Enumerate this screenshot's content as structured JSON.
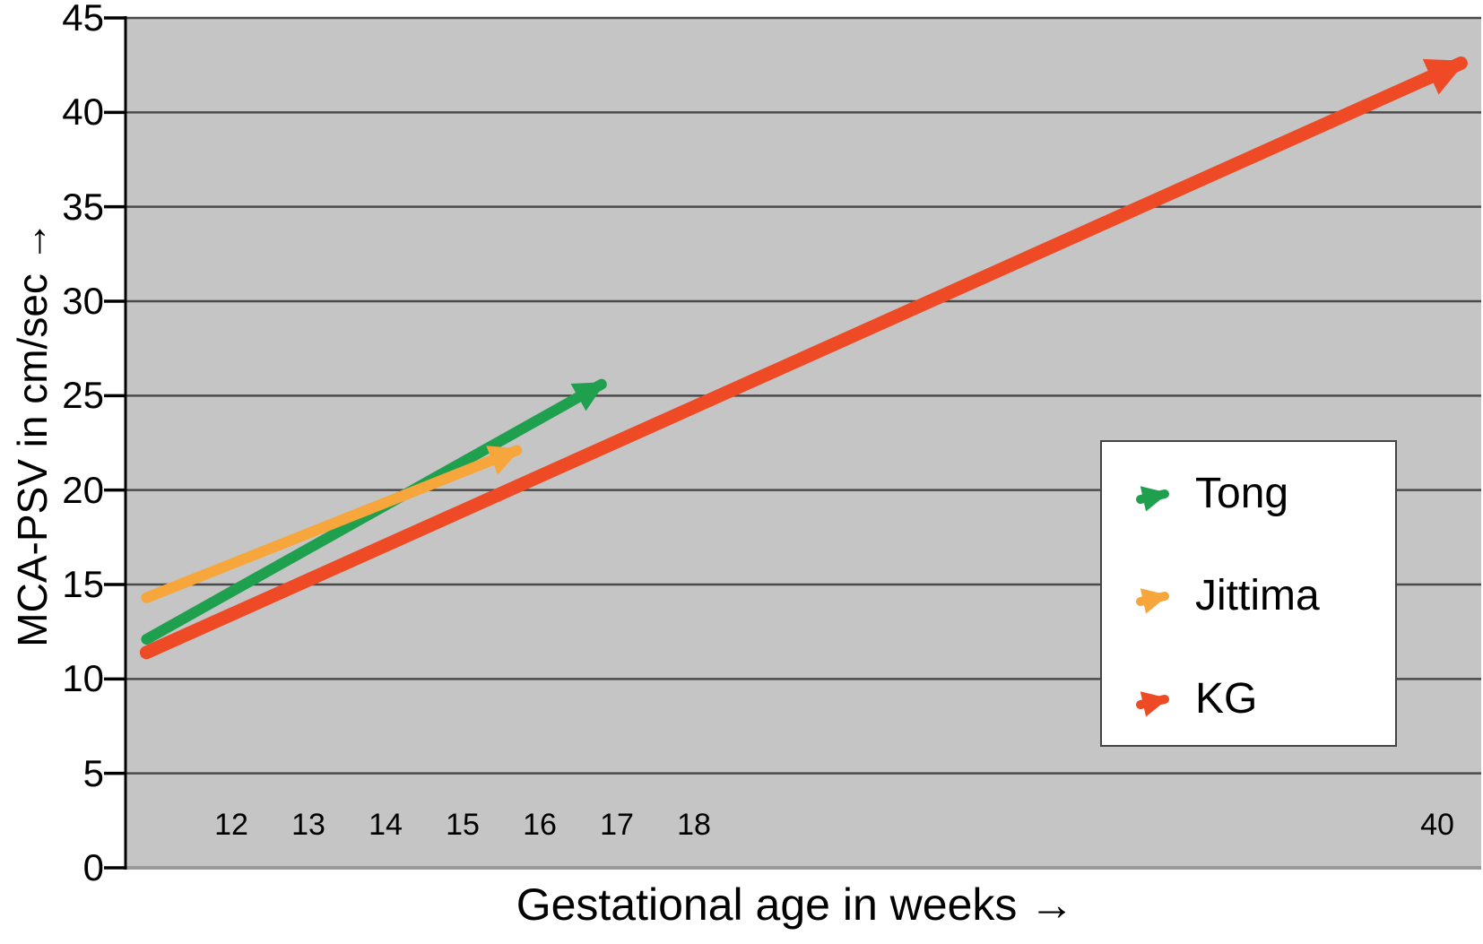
{
  "chart_data": {
    "type": "line",
    "title": "",
    "xlabel": "Gestational age in weeks →",
    "ylabel": "MCA-PSV in cm/sec →",
    "ylim": [
      0,
      45
    ],
    "yticks": [
      0,
      5,
      10,
      15,
      20,
      25,
      30,
      35,
      40,
      45
    ],
    "xticks": [
      12,
      13,
      14,
      15,
      16,
      17,
      18,
      40
    ],
    "x_axis_note": "axis compressed between week 18 and week 40",
    "grid": "horizontal",
    "plot_bg_color": "#c5c5c5",
    "gridline_color": "#4a4a4a",
    "axis_line_color": "#000000",
    "bottom_edge_color": "#999999",
    "series": [
      {
        "name": "Tong",
        "color": "#1fa04e",
        "stroke_width": 12,
        "points": [
          [
            10.9,
            12.1
          ],
          [
            16.8,
            25.6
          ]
        ]
      },
      {
        "name": "Jittima",
        "color": "#f6a63a",
        "stroke_width": 12,
        "points": [
          [
            10.9,
            14.3
          ],
          [
            15.7,
            22.1
          ]
        ]
      },
      {
        "name": "KG",
        "color": "#ee4a25",
        "stroke_width": 15,
        "points": [
          [
            10.9,
            11.4
          ],
          [
            40.7,
            42.6
          ]
        ]
      }
    ],
    "legend": {
      "position": "right-center",
      "items": [
        "Tong",
        "Jittima",
        "KG"
      ]
    }
  }
}
